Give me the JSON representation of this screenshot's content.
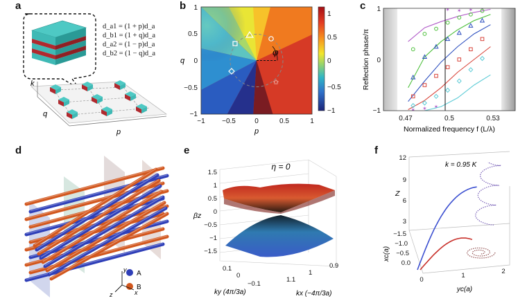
{
  "panels": {
    "a": {
      "label": "a",
      "equations": [
        "d_a1 = (1 + p)d_a",
        "d_b1 = (1 + q)d_a",
        "d_a2 = (1 − p)d_a",
        "d_b2 = (1 − q)d_a"
      ],
      "axis_k": "k",
      "axis_q": "q",
      "axis_p": "p"
    },
    "b": {
      "label": "b",
      "xlabel": "p",
      "ylabel": "q",
      "xticks": [
        "−1",
        "−0.5",
        "0",
        "0.5",
        "1"
      ],
      "yticks": [
        "1",
        "0.5",
        "0",
        "−0.5",
        "−1"
      ],
      "colorbar_ticks": [
        "1",
        "0.5",
        "0",
        "−0.5",
        "−1"
      ],
      "phi_label": "φ"
    },
    "c": {
      "label": "c",
      "xlabel": "Normalized frequency f (L/λ)",
      "ylabel": "Reflection phase/π",
      "xticks": [
        "0.47",
        "0.5",
        "0.53"
      ],
      "yticks": [
        "1",
        "0",
        "−1"
      ]
    },
    "d": {
      "label": "d",
      "legend": [
        {
          "name": "A",
          "color": "#2f3fb8"
        },
        {
          "name": "B",
          "color": "#d2571e"
        }
      ],
      "axes": [
        "y",
        "x",
        "z"
      ]
    },
    "e": {
      "label": "e",
      "title": "η = 0",
      "zlabel": "βz",
      "zticks": [
        "1.5",
        "1",
        "0.5",
        "0",
        "−0.5",
        "−1",
        "−1.5"
      ],
      "ky_ticks": [
        "0.1",
        "0",
        "−0.1"
      ],
      "kx_ticks": [
        "1.1",
        "1",
        "0.9"
      ],
      "ky_label": "ky (4π/3a)",
      "kx_label": "kx (−4π/3a)"
    },
    "f": {
      "label": "f",
      "annotation": "k = 0.95 K",
      "zlabel": "Z",
      "xclabel": "xc(a)",
      "yclabel": "yc(a)",
      "zticks": [
        "12",
        "9",
        "6",
        "3"
      ],
      "xc_ticks": [
        "−1.5",
        "−1.0",
        "−0.5",
        "0.0"
      ],
      "yc_ticks": [
        "0",
        "1",
        "2"
      ]
    }
  },
  "chart_data": [
    {
      "type": "scatter",
      "panel": "c",
      "title": "",
      "xlabel": "Normalized frequency f (L/λ)",
      "ylabel": "Reflection phase/π",
      "xlim": [
        0.46,
        0.54
      ],
      "ylim": [
        -1,
        1
      ],
      "series": [
        {
          "color": "#b05ac8",
          "marker": "star",
          "x": [
            0.478,
            0.485,
            0.492,
            0.499,
            0.506,
            0.513,
            0.52
          ],
          "y": [
            -0.98,
            -0.95,
            -0.92,
            0.98,
            0.96,
            0.97,
            0.99
          ]
        },
        {
          "color": "#b05ac8",
          "marker": "line",
          "x": [
            0.475,
            0.485,
            0.495,
            0.505,
            0.515,
            0.525
          ],
          "y": [
            0.35,
            0.62,
            0.74,
            0.84,
            0.92,
            0.98
          ]
        },
        {
          "color": "#4cbf3a",
          "marker": "circle",
          "x": [
            0.478,
            0.485,
            0.492,
            0.499,
            0.506,
            0.513,
            0.52
          ],
          "y": [
            0.2,
            0.5,
            0.6,
            0.72,
            0.82,
            0.88,
            0.95
          ]
        },
        {
          "color": "#4cbf3a",
          "marker": "line",
          "x": [
            0.475,
            0.485,
            0.495,
            0.505,
            0.515,
            0.525
          ],
          "y": [
            -0.55,
            0.05,
            0.35,
            0.58,
            0.76,
            0.88
          ]
        },
        {
          "color": "#2d4fbf",
          "marker": "triangle",
          "x": [
            0.478,
            0.485,
            0.492,
            0.499,
            0.506,
            0.513,
            0.52
          ],
          "y": [
            -0.35,
            0.05,
            0.25,
            0.4,
            0.52,
            0.66,
            0.76
          ]
        },
        {
          "color": "#2d4fbf",
          "marker": "line",
          "x": [
            0.475,
            0.485,
            0.495,
            0.505,
            0.515,
            0.525
          ],
          "y": [
            -0.82,
            -0.42,
            -0.05,
            0.25,
            0.5,
            0.68
          ]
        },
        {
          "color": "#d8443a",
          "marker": "square",
          "x": [
            0.478,
            0.485,
            0.492,
            0.499,
            0.506,
            0.513,
            0.52
          ],
          "y": [
            -0.72,
            -0.5,
            -0.32,
            -0.15,
            0.0,
            0.2,
            0.4
          ]
        },
        {
          "color": "#d8443a",
          "marker": "line",
          "x": [
            0.475,
            0.485,
            0.495,
            0.505,
            0.515,
            0.525
          ],
          "y": [
            -0.98,
            -0.8,
            -0.55,
            -0.25,
            0.0,
            0.25
          ]
        },
        {
          "color": "#5ccbd6",
          "marker": "diamond",
          "x": [
            0.478,
            0.485,
            0.492,
            0.499,
            0.506,
            0.513,
            0.52
          ],
          "y": [
            -0.9,
            -0.85,
            -0.72,
            -0.6,
            -0.42,
            -0.2,
            0.02
          ]
        },
        {
          "color": "#5ccbd6",
          "marker": "line",
          "x": [
            0.485,
            0.495,
            0.505,
            0.515,
            0.525
          ],
          "y": [
            -1.0,
            -0.92,
            -0.75,
            -0.5,
            -0.3
          ]
        }
      ]
    }
  ]
}
